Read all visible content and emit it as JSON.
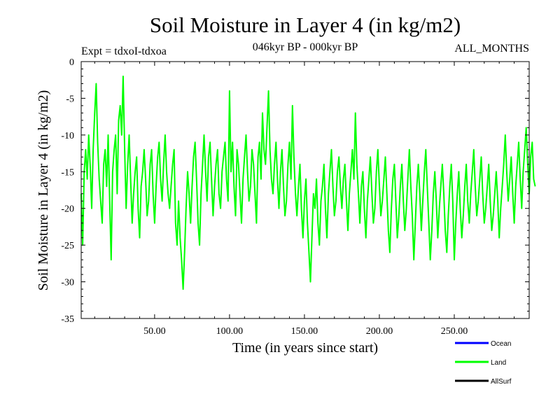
{
  "chart_data": {
    "type": "line",
    "title": "Soil Moisture in Layer 4 (in kg/m2)",
    "subtitle": "046kyr BP - 000kyr BP",
    "experiment_label": "Expt = tdxoI-tdxoa",
    "period_label": "ALL_MONTHS",
    "xlabel": "Time (in years since start)",
    "ylabel": "Soil Moisture in Layer 4 (in kg/m2)",
    "xlim": [
      1,
      300
    ],
    "ylim": [
      -35,
      0
    ],
    "x_ticks": [
      50,
      100,
      150,
      200,
      250
    ],
    "x_tick_labels": [
      "50.00",
      "100.00",
      "150.00",
      "200.00",
      "250.00"
    ],
    "y_ticks": [
      0,
      -5,
      -10,
      -15,
      -20,
      -25,
      -30,
      -35
    ],
    "y_tick_labels": [
      "0",
      "-5",
      "-10",
      "-15",
      "-20",
      "-25",
      "-30",
      "-35"
    ],
    "grid": false,
    "legend_position": "bottom-right",
    "legend": [
      {
        "name": "Ocean",
        "color": "#0000ff"
      },
      {
        "name": "Land",
        "color": "#00ff00"
      },
      {
        "name": "AllSurf",
        "color": "#000000"
      }
    ],
    "series": [
      {
        "name": "Land",
        "color": "#00ff00",
        "x_start": 1,
        "x_step": 1,
        "values": [
          -18,
          -25,
          -15,
          -12,
          -16,
          -10,
          -14,
          -20,
          -12,
          -7,
          -3,
          -11,
          -16,
          -19,
          -22,
          -14,
          -12,
          -17,
          -10,
          -19,
          -27,
          -15,
          -12,
          -10,
          -18,
          -8,
          -6,
          -10,
          -2,
          -12,
          -20,
          -14,
          -10,
          -16,
          -22,
          -18,
          -15,
          -13,
          -20,
          -24,
          -17,
          -15,
          -12,
          -16,
          -21,
          -19,
          -14,
          -12,
          -18,
          -22,
          -17,
          -13,
          -11,
          -16,
          -19,
          -14,
          -10,
          -15,
          -18,
          -20,
          -17,
          -14,
          -12,
          -22,
          -25,
          -19,
          -24,
          -27,
          -31,
          -26,
          -20,
          -15,
          -18,
          -22,
          -17,
          -13,
          -11,
          -16,
          -22,
          -25,
          -18,
          -14,
          -10,
          -15,
          -19,
          -13,
          -11,
          -16,
          -21,
          -17,
          -14,
          -12,
          -18,
          -20,
          -15,
          -13,
          -11,
          -16,
          -19,
          -4,
          -15,
          -11,
          -17,
          -21,
          -12,
          -14,
          -18,
          -22,
          -16,
          -13,
          -10,
          -15,
          -19,
          -17,
          -12,
          -14,
          -18,
          -22,
          -13,
          -11,
          -16,
          -7,
          -12,
          -14,
          -9,
          -4,
          -12,
          -16,
          -18,
          -14,
          -11,
          -16,
          -20,
          -15,
          -12,
          -17,
          -21,
          -19,
          -14,
          -11,
          -16,
          -6,
          -13,
          -18,
          -21,
          -17,
          -14,
          -20,
          -24,
          -19,
          -16,
          -22,
          -26,
          -30,
          -24,
          -18,
          -20,
          -16,
          -22,
          -25,
          -19,
          -17,
          -14,
          -20,
          -24,
          -18,
          -15,
          -12,
          -17,
          -21,
          -19,
          -15,
          -13,
          -17,
          -20,
          -16,
          -14,
          -19,
          -23,
          -18,
          -15,
          -12,
          -16,
          -7,
          -14,
          -18,
          -22,
          -17,
          -15,
          -20,
          -24,
          -19,
          -16,
          -13,
          -18,
          -22,
          -20,
          -15,
          -12,
          -17,
          -21,
          -19,
          -16,
          -13,
          -18,
          -23,
          -26,
          -20,
          -16,
          -14,
          -19,
          -24,
          -21,
          -17,
          -14,
          -19,
          -23,
          -20,
          -16,
          -12,
          -17,
          -21,
          -27,
          -22,
          -17,
          -14,
          -18,
          -23,
          -19,
          -15,
          -12,
          -17,
          -22,
          -27,
          -23,
          -18,
          -15,
          -19,
          -24,
          -20,
          -17,
          -14,
          -18,
          -23,
          -26,
          -21,
          -17,
          -14,
          -19,
          -27,
          -22,
          -18,
          -15,
          -20,
          -24,
          -21,
          -17,
          -14,
          -19,
          -22,
          -18,
          -15,
          -12,
          -17,
          -21,
          -19,
          -16,
          -13,
          -18,
          -22,
          -20,
          -17,
          -14,
          -19,
          -23,
          -21,
          -18,
          -15,
          -19,
          -24,
          -20,
          -17,
          -14,
          -10,
          -15,
          -19,
          -16,
          -13,
          -18,
          -22,
          -17,
          -14,
          -11,
          -16,
          -20,
          -15,
          -12,
          -9,
          -14,
          -18,
          -13,
          -11,
          -16,
          -17
        ]
      }
    ]
  }
}
